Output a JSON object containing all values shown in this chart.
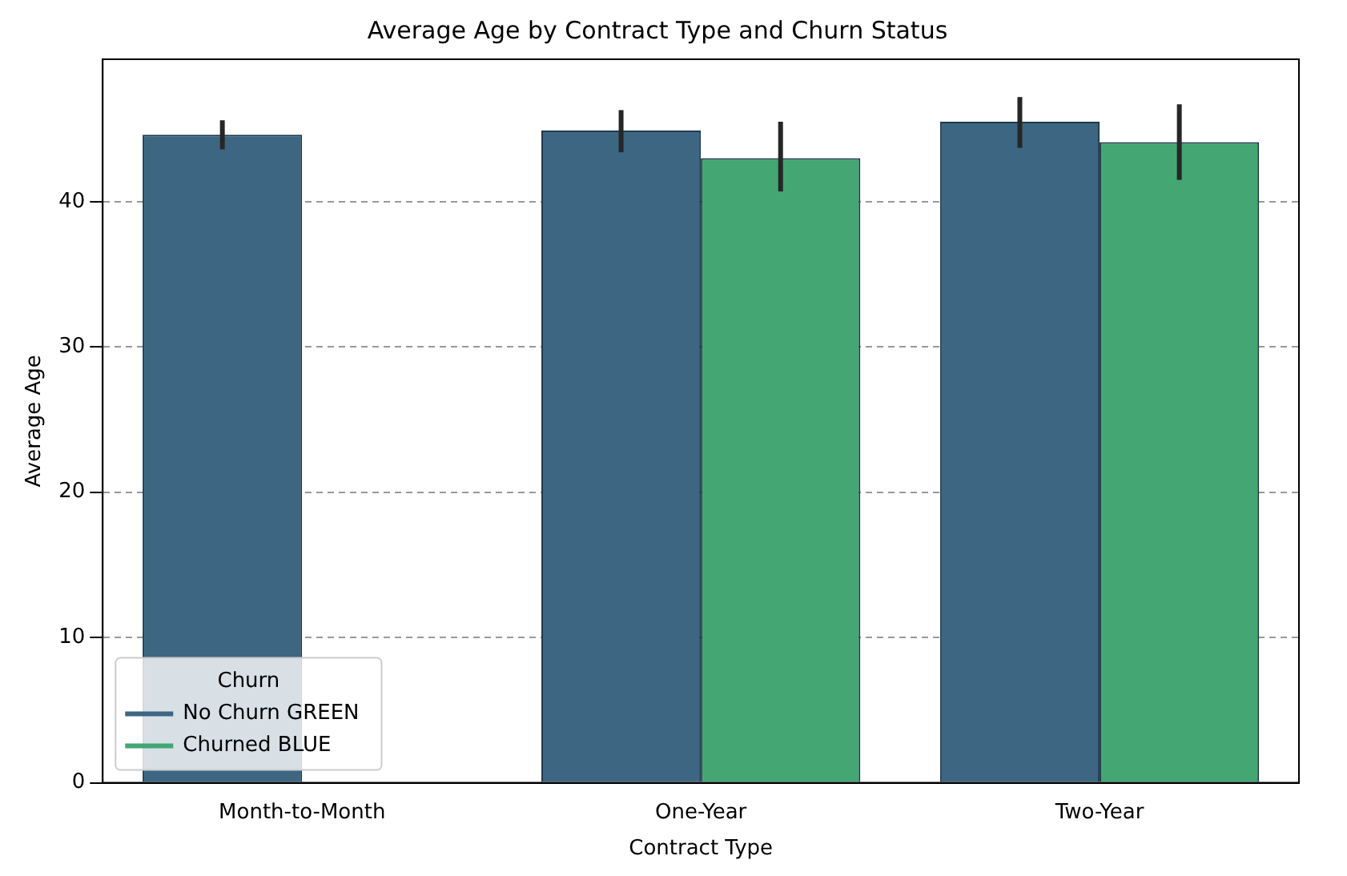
{
  "chart_data": {
    "type": "bar",
    "title": "Average Age by Contract Type and Churn Status",
    "xlabel": "Contract Type",
    "ylabel": "Average Age",
    "legend_title": "Churn",
    "categories": [
      "Month-to-Month",
      "One-Year",
      "Two-Year"
    ],
    "series": [
      {
        "name": "No Churn GREEN",
        "color": "#3d6683",
        "values": [
          44.6,
          44.9,
          45.5
        ],
        "errors": [
          [
            43.6,
            45.6
          ],
          [
            43.4,
            46.3
          ],
          [
            43.7,
            47.2
          ]
        ]
      },
      {
        "name": "Churned BLUE",
        "color": "#43a673",
        "values": [
          null,
          43.0,
          44.1
        ],
        "errors": [
          null,
          [
            40.7,
            45.5
          ],
          [
            41.5,
            46.7
          ]
        ]
      }
    ],
    "ylim": [
      0,
      49.8
    ],
    "yticks": [
      0,
      10,
      20,
      30,
      40
    ],
    "grid": "y",
    "legend": "bottom left"
  }
}
